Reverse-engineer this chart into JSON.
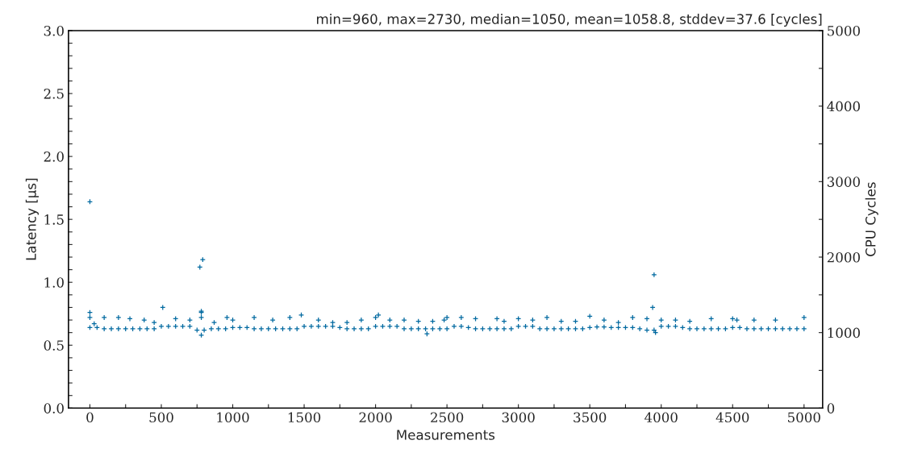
{
  "chart_data": {
    "type": "scatter",
    "title": "min=960, max=2730, median=1050, mean=1058.8, stddev=37.6 [cycles]",
    "xlabel": "Measurements",
    "ylabel": "Latency [μs]",
    "y2label": "CPU Cycles",
    "marker": "cross",
    "x": [
      0,
      50,
      100,
      150,
      200,
      250,
      300,
      350,
      400,
      450,
      500,
      550,
      600,
      650,
      700,
      750,
      800,
      850,
      900,
      950,
      1000,
      1050,
      1100,
      1150,
      1200,
      1250,
      1300,
      1350,
      1400,
      1450,
      1500,
      1550,
      1600,
      1650,
      1700,
      1750,
      1800,
      1850,
      1900,
      1950,
      2000,
      2050,
      2100,
      2150,
      2200,
      2250,
      2300,
      2350,
      2400,
      2450,
      2500,
      2550,
      2600,
      2650,
      2700,
      2750,
      2800,
      2850,
      2900,
      2950,
      3000,
      3050,
      3100,
      3150,
      3200,
      3250,
      3300,
      3350,
      3400,
      3450,
      3500,
      3550,
      3600,
      3650,
      3700,
      3750,
      3800,
      3850,
      3900,
      3950,
      4000,
      4050,
      4100,
      4150,
      4200,
      4250,
      4300,
      4350,
      4400,
      4450,
      4500,
      4550,
      4600,
      4650,
      4700,
      4750,
      4800,
      4850,
      4900,
      4950,
      5000,
      0,
      0,
      0,
      30,
      100,
      200,
      280,
      380,
      450,
      510,
      600,
      700,
      770,
      790,
      780,
      780,
      780,
      780,
      870,
      960,
      1000,
      1150,
      1280,
      1400,
      1480,
      1600,
      1700,
      1800,
      1900,
      2000,
      2020,
      2100,
      2200,
      2300,
      2360,
      2400,
      2480,
      2500,
      2600,
      2700,
      2850,
      2900,
      3000,
      3100,
      3200,
      3300,
      3400,
      3500,
      3600,
      3700,
      3800,
      3900,
      3950,
      3940,
      3960,
      4000,
      4100,
      4200,
      4350,
      4500,
      4530,
      4650,
      4800,
      5000
    ],
    "series": [
      {
        "color": "#0069a0",
        "values": [
          0.64,
          0.64,
          0.63,
          0.63,
          0.63,
          0.63,
          0.63,
          0.63,
          0.63,
          0.63,
          0.65,
          0.65,
          0.65,
          0.65,
          0.65,
          0.62,
          0.62,
          0.63,
          0.63,
          0.63,
          0.64,
          0.64,
          0.64,
          0.63,
          0.63,
          0.63,
          0.63,
          0.63,
          0.63,
          0.63,
          0.65,
          0.65,
          0.65,
          0.65,
          0.65,
          0.64,
          0.63,
          0.63,
          0.63,
          0.63,
          0.65,
          0.65,
          0.65,
          0.65,
          0.63,
          0.63,
          0.63,
          0.63,
          0.63,
          0.63,
          0.63,
          0.65,
          0.65,
          0.64,
          0.63,
          0.63,
          0.63,
          0.63,
          0.63,
          0.63,
          0.65,
          0.65,
          0.65,
          0.63,
          0.63,
          0.63,
          0.63,
          0.63,
          0.63,
          0.63,
          0.64,
          0.645,
          0.645,
          0.64,
          0.64,
          0.64,
          0.64,
          0.63,
          0.62,
          0.62,
          0.65,
          0.65,
          0.65,
          0.64,
          0.63,
          0.63,
          0.63,
          0.63,
          0.63,
          0.63,
          0.64,
          0.64,
          0.63,
          0.63,
          0.63,
          0.63,
          0.63,
          0.63,
          0.63,
          0.63,
          0.63,
          1.64,
          0.76,
          0.72,
          0.67,
          0.72,
          0.72,
          0.71,
          0.7,
          0.68,
          0.8,
          0.71,
          0.7,
          1.12,
          1.18,
          0.77,
          0.76,
          0.72,
          0.58,
          0.68,
          0.72,
          0.7,
          0.72,
          0.7,
          0.72,
          0.74,
          0.7,
          0.68,
          0.68,
          0.7,
          0.72,
          0.74,
          0.7,
          0.7,
          0.69,
          0.59,
          0.69,
          0.7,
          0.72,
          0.72,
          0.71,
          0.71,
          0.69,
          0.71,
          0.7,
          0.72,
          0.69,
          0.69,
          0.73,
          0.7,
          0.68,
          0.72,
          0.71,
          1.06,
          0.8,
          0.6,
          0.7,
          0.7,
          0.69,
          0.71,
          0.71,
          0.7,
          0.7,
          0.7,
          0.72
        ]
      }
    ],
    "xlim": [
      -150,
      5130
    ],
    "xticks": [
      0,
      {
        "value": 250,
        "label": null
      },
      500,
      {
        "value": 750,
        "label": null
      },
      1000,
      {
        "value": 1250,
        "label": null
      },
      1500,
      {
        "value": 1750,
        "label": null
      },
      2000,
      {
        "value": 2250,
        "label": null
      },
      2500,
      {
        "value": 2750,
        "label": null
      },
      3000,
      {
        "value": 3250,
        "label": null
      },
      3500,
      {
        "value": 3750,
        "label": null
      },
      4000,
      {
        "value": 4250,
        "label": null
      },
      4500,
      {
        "value": 4750,
        "label": null
      },
      5000
    ],
    "ylim": [
      0,
      3
    ],
    "yticks": [
      {
        "value": 0,
        "label": "0.0"
      },
      {
        "value": 0.1,
        "label": null
      },
      {
        "value": 0.2,
        "label": null
      },
      {
        "value": 0.3,
        "label": null
      },
      {
        "value": 0.4,
        "label": null
      },
      {
        "value": 0.5,
        "label": "0.5"
      },
      {
        "value": 0.6,
        "label": null
      },
      {
        "value": 0.7,
        "label": null
      },
      {
        "value": 0.8,
        "label": null
      },
      {
        "value": 0.9,
        "label": null
      },
      {
        "value": 1,
        "label": "1.0"
      },
      {
        "value": 1.1,
        "label": null
      },
      {
        "value": 1.2,
        "label": null
      },
      {
        "value": 1.3,
        "label": null
      },
      {
        "value": 1.4,
        "label": null
      },
      {
        "value": 1.5,
        "label": "1.5"
      },
      {
        "value": 1.6,
        "label": null
      },
      {
        "value": 1.7,
        "label": null
      },
      {
        "value": 1.8,
        "label": null
      },
      {
        "value": 1.9,
        "label": null
      },
      {
        "value": 2,
        "label": "2.0"
      },
      {
        "value": 2.1,
        "label": null
      },
      {
        "value": 2.2,
        "label": null
      },
      {
        "value": 2.3,
        "label": null
      },
      {
        "value": 2.4,
        "label": null
      },
      {
        "value": 2.5,
        "label": "2.5"
      },
      {
        "value": 2.6,
        "label": null
      },
      {
        "value": 2.7,
        "label": null
      },
      {
        "value": 2.8,
        "label": null
      },
      {
        "value": 2.9,
        "label": null
      },
      {
        "value": 3,
        "label": "3.0"
      }
    ],
    "y2lim": [
      0,
      5000
    ],
    "y2ticks": [
      0,
      {
        "value": 500,
        "label": null
      },
      1000,
      {
        "value": 1500,
        "label": null
      },
      2000,
      {
        "value": 2500,
        "label": null
      },
      3000,
      {
        "value": 3500,
        "label": null
      },
      4000,
      {
        "value": 4500,
        "label": null
      },
      5000
    ]
  }
}
